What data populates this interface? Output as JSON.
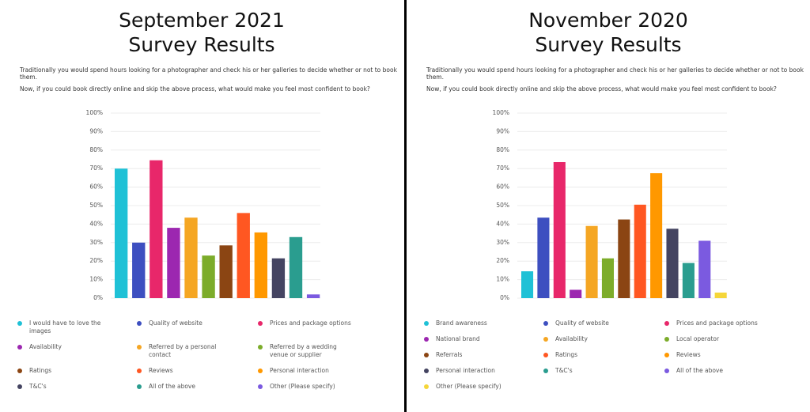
{
  "chart_data": [
    {
      "type": "bar",
      "title": "September 2021 Survey Results",
      "subtitle": "Traditionally you would spend hours looking for a photographer and check his or her galleries to decide whether or not to book them.",
      "question": "Now, if you could book directly online and skip the above process, what would make you feel most confident to book?",
      "categories": [
        "I would have to love the images",
        "Quality of website",
        "Prices and package options",
        "Availability",
        "Referred by a personal contact",
        "Referred by a wedding venue or supplier",
        "Ratings",
        "Reviews",
        "Personal interaction",
        "T&C's",
        "All of the above",
        "Other (Please specify)"
      ],
      "values": [
        70,
        30,
        74.5,
        38,
        43.5,
        23,
        28.5,
        46,
        35.5,
        21.5,
        33,
        2
      ],
      "colors": [
        "#1fc1d6",
        "#3d4fc0",
        "#e8276a",
        "#9c27b0",
        "#f5a623",
        "#7cac2a",
        "#8b4513",
        "#ff5722",
        "#ff9800",
        "#444461",
        "#2a9d8f",
        "#7b5ae0"
      ],
      "ylim": [
        0,
        100
      ],
      "yticks": [
        {
          "value": 0,
          "label": "0%"
        },
        {
          "value": 10,
          "label": "10%"
        },
        {
          "value": 20,
          "label": "20%"
        },
        {
          "value": 30,
          "label": "30%"
        },
        {
          "value": 40,
          "label": "40%"
        },
        {
          "value": 50,
          "label": "50%"
        },
        {
          "value": 60,
          "label": "60%"
        },
        {
          "value": 70,
          "label": "70%"
        },
        {
          "value": 80,
          "label": "80%"
        },
        {
          "value": 90,
          "label": "90%"
        },
        {
          "value": 100,
          "label": "100%"
        }
      ],
      "grid": true
    },
    {
      "type": "bar",
      "title": "November 2020 Survey Results",
      "subtitle": "Traditionally you would spend hours looking for a photographer and check his or her galleries to decide whether or not to book them.",
      "question": "Now, if you could book directly online and skip the above process, what would make you feel most confident to book?",
      "categories": [
        "Brand awareness",
        "Quality of website",
        "Prices and package options",
        "National brand",
        "Availability",
        "Local operator",
        "Referrals",
        "Ratings",
        "Reviews",
        "Personal interaction",
        "T&C's",
        "All of the above",
        "Other (Please specify)"
      ],
      "values": [
        14.5,
        43.5,
        73.5,
        4.5,
        39,
        21.5,
        42.5,
        50.5,
        67.5,
        37.5,
        19,
        31,
        3
      ],
      "colors": [
        "#1fc1d6",
        "#3d4fc0",
        "#e8276a",
        "#9c27b0",
        "#f5a623",
        "#7cac2a",
        "#8b4513",
        "#ff5722",
        "#ff9800",
        "#444461",
        "#2a9d8f",
        "#7b5ae0",
        "#f5d63a"
      ],
      "ylim": [
        0,
        100
      ],
      "yticks": [
        {
          "value": 0,
          "label": "0%"
        },
        {
          "value": 10,
          "label": "10%"
        },
        {
          "value": 20,
          "label": "20%"
        },
        {
          "value": 30,
          "label": "30%"
        },
        {
          "value": 40,
          "label": "40%"
        },
        {
          "value": 50,
          "label": "50%"
        },
        {
          "value": 60,
          "label": "60%"
        },
        {
          "value": 70,
          "label": "70%"
        },
        {
          "value": 80,
          "label": "80%"
        },
        {
          "value": 90,
          "label": "90%"
        },
        {
          "value": 100,
          "label": "100%"
        }
      ],
      "grid": true
    }
  ]
}
